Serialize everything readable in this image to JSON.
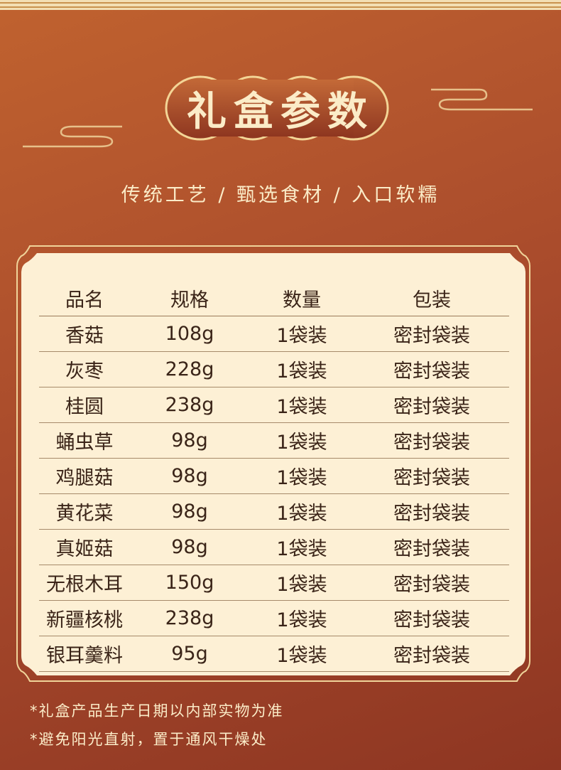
{
  "title": "礼盒参数",
  "subtitle": "传统工艺 / 甄选食材 / 入口软糯",
  "colors": {
    "background": "#a84a2c",
    "panel": "#fdf0d5",
    "gold": "#f0d49a",
    "text": "#3a2418"
  },
  "table": {
    "headers": [
      "品名",
      "规格",
      "数量",
      "包装"
    ],
    "rows": [
      [
        "香菇",
        "108g",
        "1袋装",
        "密封袋装"
      ],
      [
        "灰枣",
        "228g",
        "1袋装",
        "密封袋装"
      ],
      [
        "桂圆",
        "238g",
        "1袋装",
        "密封袋装"
      ],
      [
        "蛹虫草",
        "98g",
        "1袋装",
        "密封袋装"
      ],
      [
        "鸡腿菇",
        "98g",
        "1袋装",
        "密封袋装"
      ],
      [
        "黄花菜",
        "98g",
        "1袋装",
        "密封袋装"
      ],
      [
        "真姬菇",
        "98g",
        "1袋装",
        "密封袋装"
      ],
      [
        "无根木耳",
        "150g",
        "1袋装",
        "密封袋装"
      ],
      [
        "新疆核桃",
        "238g",
        "1袋装",
        "密封袋装"
      ],
      [
        "银耳羹料",
        "95g",
        "1袋装",
        "密封袋装"
      ]
    ]
  },
  "notes": [
    "*礼盒产品生产日期以内部实物为准",
    "*避免阳光直射，置于通风干燥处"
  ]
}
